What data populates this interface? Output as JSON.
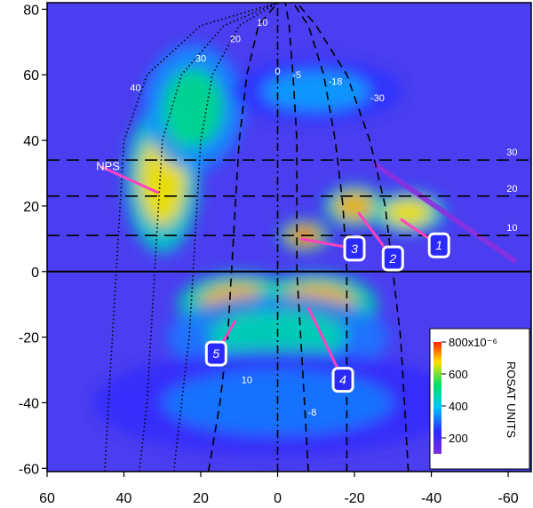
{
  "chart_data": {
    "type": "heatmap",
    "title": "",
    "xlabel": "",
    "ylabel": "",
    "xlim": [
      60,
      -66
    ],
    "ylim": [
      -61,
      82
    ],
    "x_ticks": [
      60,
      40,
      20,
      0,
      -20,
      -40,
      -60
    ],
    "x_tick_labels": [
      "60",
      "40",
      "20",
      "0",
      "-20",
      "-40",
      "-60"
    ],
    "y_ticks": [
      80,
      60,
      40,
      20,
      0,
      -20,
      -40,
      -60
    ],
    "y_tick_labels": [
      "80",
      "60",
      "40",
      "20",
      "0",
      "-20",
      "-40",
      "-60"
    ],
    "colorbar": {
      "label": "ROSAT UNITS",
      "range": [
        100,
        800
      ],
      "ticks": [
        800,
        600,
        400,
        200
      ],
      "tick_labels": [
        "800x10⁻⁶",
        "600",
        "400",
        "200"
      ],
      "colors": [
        "#7a2be0",
        "#2a2aff",
        "#00c8ff",
        "#00e060",
        "#ffe000",
        "#ff2000"
      ]
    },
    "background_color": "#4a3ef0",
    "blobs": [
      {
        "name": "NPS",
        "x": 30,
        "y": 28,
        "sx": 6,
        "sy": 14,
        "level": 0.8
      },
      {
        "name": "north-loop",
        "x": 22,
        "y": 50,
        "sx": 8,
        "sy": 12,
        "level": 0.55
      },
      {
        "name": "south-band-east",
        "x": 10,
        "y": -10,
        "sx": 10,
        "sy": 6,
        "level": 0.85
      },
      {
        "name": "south-band-west",
        "x": -10,
        "y": -10,
        "sx": 10,
        "sy": 6,
        "level": 0.85
      },
      {
        "name": "south-band-mid",
        "x": 0,
        "y": -20,
        "sx": 18,
        "sy": 8,
        "level": 0.5
      },
      {
        "name": "region-3",
        "x": -7,
        "y": 11,
        "sx": 4,
        "sy": 3,
        "level": 0.9
      },
      {
        "name": "region-2",
        "x": -20,
        "y": 20,
        "sx": 5,
        "sy": 4,
        "level": 0.85
      },
      {
        "name": "region-1",
        "x": -34,
        "y": 18,
        "sx": 6,
        "sy": 4,
        "level": 0.8
      },
      {
        "name": "north-arc",
        "x": -10,
        "y": 55,
        "sx": 14,
        "sy": 6,
        "level": 0.35
      },
      {
        "name": "halo-south",
        "x": 0,
        "y": -40,
        "sx": 30,
        "sy": 10,
        "level": 0.3
      }
    ],
    "galactic_plane_y": 0,
    "longitude_curves": [
      {
        "label": "40",
        "style": "dotted",
        "points": [
          [
            45,
            -61
          ],
          [
            44,
            -40
          ],
          [
            43,
            -20
          ],
          [
            42,
            0
          ],
          [
            41,
            20
          ],
          [
            40,
            40
          ],
          [
            34,
            60
          ],
          [
            20,
            75
          ],
          [
            0,
            82
          ]
        ],
        "label_at": [
          37,
          55
        ]
      },
      {
        "label": "30",
        "style": "dotted",
        "points": [
          [
            36,
            -61
          ],
          [
            34,
            -40
          ],
          [
            33,
            -20
          ],
          [
            32,
            0
          ],
          [
            31,
            20
          ],
          [
            30,
            40
          ],
          [
            25,
            60
          ],
          [
            14,
            75
          ],
          [
            0,
            82
          ]
        ],
        "label_at": [
          20,
          64
        ]
      },
      {
        "label": "20",
        "style": "dotted",
        "points": [
          [
            27,
            -61
          ],
          [
            25,
            -40
          ],
          [
            23,
            -20
          ],
          [
            22,
            0
          ],
          [
            21,
            20
          ],
          [
            20,
            40
          ],
          [
            17,
            60
          ],
          [
            10,
            75
          ],
          [
            0,
            82
          ]
        ],
        "label_at": [
          11,
          70
        ]
      },
      {
        "label": "10",
        "style": "dashed",
        "points": [
          [
            18,
            -61
          ],
          [
            15,
            -40
          ],
          [
            13,
            -20
          ],
          [
            12,
            0
          ],
          [
            11,
            20
          ],
          [
            10,
            40
          ],
          [
            8,
            60
          ],
          [
            5,
            75
          ],
          [
            0,
            82
          ]
        ],
        "label_at": [
          4,
          75
        ]
      },
      {
        "label": "0",
        "style": "dashdot",
        "points": [
          [
            0,
            -61
          ],
          [
            0,
            82
          ]
        ],
        "label_at": [
          0,
          60
        ]
      },
      {
        "label": "-5",
        "style": "dashed",
        "points": [
          [
            -8,
            -61
          ],
          [
            -7,
            -40
          ],
          [
            -6,
            -20
          ],
          [
            -5,
            0
          ],
          [
            -5,
            20
          ],
          [
            -5,
            40
          ],
          [
            -4,
            60
          ],
          [
            -3,
            75
          ],
          [
            -2,
            82
          ]
        ],
        "label_at": [
          -5,
          59
        ]
      },
      {
        "label": "-18",
        "style": "dashed",
        "points": [
          [
            -18,
            -61
          ],
          [
            -18,
            -40
          ],
          [
            -18,
            -20
          ],
          [
            -18,
            0
          ],
          [
            -17,
            20
          ],
          [
            -15,
            40
          ],
          [
            -12,
            60
          ],
          [
            -8,
            75
          ],
          [
            -4,
            82
          ]
        ],
        "label_at": [
          -15,
          57
        ]
      },
      {
        "label": "-30",
        "style": "dashed",
        "points": [
          [
            -34,
            -61
          ],
          [
            -33,
            -40
          ],
          [
            -32,
            -20
          ],
          [
            -30,
            0
          ],
          [
            -28,
            20
          ],
          [
            -24,
            40
          ],
          [
            -18,
            60
          ],
          [
            -10,
            75
          ],
          [
            -5,
            82
          ]
        ],
        "label_at": [
          -26,
          52
        ]
      }
    ],
    "latitude_lines": [
      {
        "label": "30",
        "y": 34,
        "label_x": -61
      },
      {
        "label": "20",
        "y": 23,
        "label_x": -61
      },
      {
        "label": "10",
        "y": 11,
        "label_x": -61
      }
    ],
    "curve_labels_south": [
      {
        "label": "10",
        "x": 8,
        "y": -34
      },
      {
        "label": "-8",
        "x": -9,
        "y": -44
      }
    ],
    "stripe": {
      "from": [
        -25,
        33
      ],
      "to": [
        -62,
        3
      ],
      "color": "#8a30e0"
    },
    "annotations": [
      {
        "text": "NPS",
        "kind": "label",
        "label_pos": [
          46,
          32
        ],
        "target": [
          31,
          24
        ]
      },
      {
        "text": "1",
        "kind": "box",
        "label_pos": [
          -42,
          8
        ],
        "target": [
          -32,
          16
        ]
      },
      {
        "text": "2",
        "kind": "box",
        "label_pos": [
          -30,
          4
        ],
        "target": [
          -21,
          18
        ]
      },
      {
        "text": "3",
        "kind": "box",
        "label_pos": [
          -20,
          7
        ],
        "target": [
          -6,
          10
        ]
      },
      {
        "text": "4",
        "kind": "box",
        "label_pos": [
          -17,
          -33
        ],
        "target": [
          -8,
          -11
        ]
      },
      {
        "text": "5",
        "kind": "box",
        "label_pos": [
          16,
          -25
        ],
        "target": [
          11,
          -15
        ]
      }
    ]
  }
}
